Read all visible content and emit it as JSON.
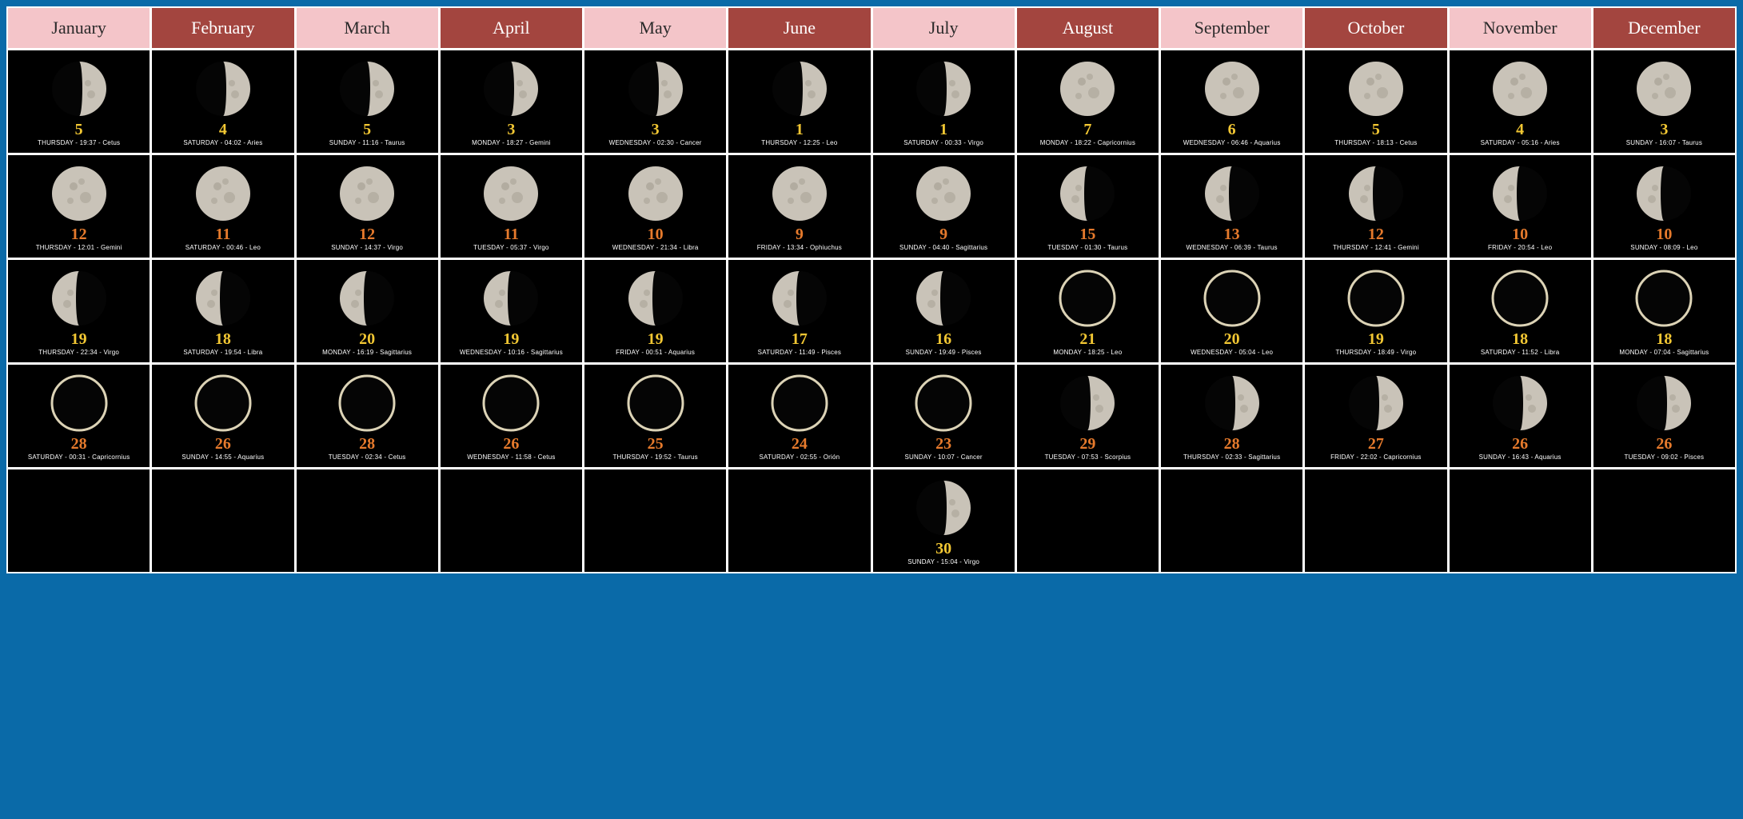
{
  "layout": {
    "cols": 12,
    "rows": 5,
    "border_color": "#ffffff",
    "page_bg": "#0a6aa8",
    "cell_bg": "#000000"
  },
  "styles": {
    "header_light_bg": "#f4c5c9",
    "header_light_fg": "#2a2a2a",
    "header_dark_bg": "#a3453f",
    "header_dark_fg": "#ffffff",
    "day_yellow": "#f2c733",
    "day_orange": "#e67a2c",
    "info_color": "#ffffff",
    "moon_lit": "#c9c3b8",
    "moon_shadow": "#000000",
    "ring_color": "#dcd3b6",
    "header_fontsize": 22,
    "day_fontsize": 20,
    "info_fontsize": 8
  },
  "months": [
    {
      "name": "January",
      "headerStyle": "light"
    },
    {
      "name": "February",
      "headerStyle": "dark"
    },
    {
      "name": "March",
      "headerStyle": "light"
    },
    {
      "name": "April",
      "headerStyle": "dark"
    },
    {
      "name": "May",
      "headerStyle": "light"
    },
    {
      "name": "June",
      "headerStyle": "dark"
    },
    {
      "name": "July",
      "headerStyle": "light"
    },
    {
      "name": "August",
      "headerStyle": "dark"
    },
    {
      "name": "September",
      "headerStyle": "light"
    },
    {
      "name": "October",
      "headerStyle": "dark"
    },
    {
      "name": "November",
      "headerStyle": "light"
    },
    {
      "name": "December",
      "headerStyle": "dark"
    }
  ],
  "rows": [
    [
      {
        "day": "5",
        "dayColor": "yellow",
        "phase": "first-quarter",
        "info": "THURSDAY - 19:37 - Cetus"
      },
      {
        "day": "4",
        "dayColor": "yellow",
        "phase": "first-quarter",
        "info": "SATURDAY - 04:02 - Aries"
      },
      {
        "day": "5",
        "dayColor": "yellow",
        "phase": "first-quarter",
        "info": "SUNDAY - 11:16 - Taurus"
      },
      {
        "day": "3",
        "dayColor": "yellow",
        "phase": "first-quarter",
        "info": "MONDAY - 18:27 - Gemini"
      },
      {
        "day": "3",
        "dayColor": "yellow",
        "phase": "first-quarter",
        "info": "WEDNESDAY - 02:30 - Cancer"
      },
      {
        "day": "1",
        "dayColor": "yellow",
        "phase": "first-quarter",
        "info": "THURSDAY - 12:25 - Leo"
      },
      {
        "day": "1",
        "dayColor": "yellow",
        "phase": "first-quarter",
        "info": "SATURDAY - 00:33 - Virgo"
      },
      {
        "day": "7",
        "dayColor": "yellow",
        "phase": "full",
        "info": "MONDAY - 18:22 - Capricornius"
      },
      {
        "day": "6",
        "dayColor": "yellow",
        "phase": "full",
        "info": "WEDNESDAY - 06:46 - Aquarius"
      },
      {
        "day": "5",
        "dayColor": "yellow",
        "phase": "full",
        "info": "THURSDAY - 18:13 - Cetus"
      },
      {
        "day": "4",
        "dayColor": "yellow",
        "phase": "full",
        "info": "SATURDAY - 05:16 - Aries"
      },
      {
        "day": "3",
        "dayColor": "yellow",
        "phase": "full",
        "info": "SUNDAY - 16:07 - Taurus"
      }
    ],
    [
      {
        "day": "12",
        "dayColor": "orange",
        "phase": "full",
        "info": "THURSDAY - 12:01 - Gemini"
      },
      {
        "day": "11",
        "dayColor": "orange",
        "phase": "full",
        "info": "SATURDAY - 00:46 - Leo"
      },
      {
        "day": "12",
        "dayColor": "orange",
        "phase": "full",
        "info": "SUNDAY - 14:37 - Virgo"
      },
      {
        "day": "11",
        "dayColor": "orange",
        "phase": "full",
        "info": "TUESDAY - 05:37 - Virgo"
      },
      {
        "day": "10",
        "dayColor": "orange",
        "phase": "full",
        "info": "WEDNESDAY - 21:34 - Libra"
      },
      {
        "day": "9",
        "dayColor": "orange",
        "phase": "full",
        "info": "FRIDAY - 13:34 - Ophiuchus"
      },
      {
        "day": "9",
        "dayColor": "orange",
        "phase": "full",
        "info": "SUNDAY - 04:40 - Sagittarius"
      },
      {
        "day": "15",
        "dayColor": "orange",
        "phase": "last-quarter",
        "info": "TUESDAY - 01:30 - Taurus"
      },
      {
        "day": "13",
        "dayColor": "orange",
        "phase": "last-quarter",
        "info": "WEDNESDAY - 06:39 - Taurus"
      },
      {
        "day": "12",
        "dayColor": "orange",
        "phase": "last-quarter",
        "info": "THURSDAY - 12:41 - Gemini"
      },
      {
        "day": "10",
        "dayColor": "orange",
        "phase": "last-quarter",
        "info": "FRIDAY - 20:54 - Leo"
      },
      {
        "day": "10",
        "dayColor": "orange",
        "phase": "last-quarter",
        "info": "SUNDAY - 08:09 - Leo"
      }
    ],
    [
      {
        "day": "19",
        "dayColor": "yellow",
        "phase": "last-quarter",
        "info": "THURSDAY - 22:34 - Virgo"
      },
      {
        "day": "18",
        "dayColor": "yellow",
        "phase": "last-quarter",
        "info": "SATURDAY - 19:54 - Libra"
      },
      {
        "day": "20",
        "dayColor": "yellow",
        "phase": "last-quarter",
        "info": "MONDAY - 16:19 - Sagittarius"
      },
      {
        "day": "19",
        "dayColor": "yellow",
        "phase": "last-quarter",
        "info": "WEDNESDAY - 10:16 - Sagittarius"
      },
      {
        "day": "19",
        "dayColor": "yellow",
        "phase": "last-quarter",
        "info": "FRIDAY - 00:51 - Aquarius"
      },
      {
        "day": "17",
        "dayColor": "yellow",
        "phase": "last-quarter",
        "info": "SATURDAY - 11:49 - Pisces"
      },
      {
        "day": "16",
        "dayColor": "yellow",
        "phase": "last-quarter",
        "info": "SUNDAY - 19:49 - Pisces"
      },
      {
        "day": "21",
        "dayColor": "yellow",
        "phase": "new",
        "info": "MONDAY - 18:25 - Leo"
      },
      {
        "day": "20",
        "dayColor": "yellow",
        "phase": "new",
        "info": "WEDNESDAY - 05:04 - Leo"
      },
      {
        "day": "19",
        "dayColor": "yellow",
        "phase": "new",
        "info": "THURSDAY - 18:49 - Virgo"
      },
      {
        "day": "18",
        "dayColor": "yellow",
        "phase": "new",
        "info": "SATURDAY - 11:52 - Libra"
      },
      {
        "day": "18",
        "dayColor": "yellow",
        "phase": "new",
        "info": "MONDAY - 07:04 - Sagittarius"
      }
    ],
    [
      {
        "day": "28",
        "dayColor": "orange",
        "phase": "new",
        "info": "SATURDAY - 00:31 - Capricornius"
      },
      {
        "day": "26",
        "dayColor": "orange",
        "phase": "new",
        "info": "SUNDAY - 14:55 - Aquarius"
      },
      {
        "day": "28",
        "dayColor": "orange",
        "phase": "new",
        "info": "TUESDAY - 02:34 - Cetus"
      },
      {
        "day": "26",
        "dayColor": "orange",
        "phase": "new",
        "info": "WEDNESDAY - 11:58 - Cetus"
      },
      {
        "day": "25",
        "dayColor": "orange",
        "phase": "new",
        "info": "THURSDAY - 19:52 - Taurus"
      },
      {
        "day": "24",
        "dayColor": "orange",
        "phase": "new",
        "info": "SATURDAY - 02:55 - Orión"
      },
      {
        "day": "23",
        "dayColor": "orange",
        "phase": "new",
        "info": "SUNDAY - 10:07 - Cancer"
      },
      {
        "day": "29",
        "dayColor": "orange",
        "phase": "first-quarter",
        "info": "TUESDAY - 07:53 - Scorpius"
      },
      {
        "day": "28",
        "dayColor": "orange",
        "phase": "first-quarter",
        "info": "THURSDAY - 02:33 - Sagittarius"
      },
      {
        "day": "27",
        "dayColor": "orange",
        "phase": "first-quarter",
        "info": "FRIDAY - 22:02 - Capricornius"
      },
      {
        "day": "26",
        "dayColor": "orange",
        "phase": "first-quarter",
        "info": "SUNDAY - 16:43 - Aquarius"
      },
      {
        "day": "26",
        "dayColor": "orange",
        "phase": "first-quarter",
        "info": "TUESDAY - 09:02 - Pisces"
      }
    ],
    [
      null,
      null,
      null,
      null,
      null,
      null,
      {
        "day": "30",
        "dayColor": "yellow",
        "phase": "first-quarter",
        "info": "SUNDAY - 15:04 - Virgo"
      },
      null,
      null,
      null,
      null,
      null
    ]
  ]
}
